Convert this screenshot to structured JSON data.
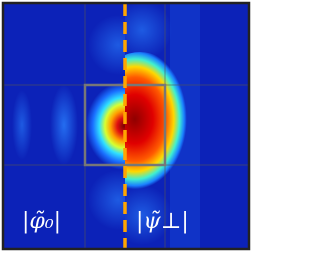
{
  "labels": {
    "left": "|φ̃₀|",
    "right": "|ψ̃⊥|"
  }
}
